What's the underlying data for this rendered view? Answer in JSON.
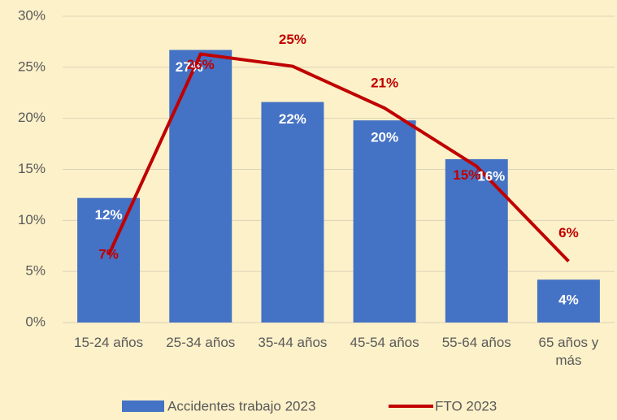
{
  "chart_data": {
    "type": "bar_line",
    "categories": [
      "15-24 años",
      "25-34 años",
      "35-44 años",
      "45-54 años",
      "55-64 años",
      "65 años y más"
    ],
    "series": [
      {
        "name": "Accidentes trabajo 2023",
        "type": "bar",
        "color": "#4472c4",
        "values": [
          12.2,
          26.7,
          21.6,
          19.8,
          16.0,
          4.2
        ],
        "value_labels": [
          "12%",
          "27%",
          "22%",
          "20%",
          "16%",
          "4%"
        ]
      },
      {
        "name": "FTO 2023",
        "type": "line",
        "color": "#c00000",
        "values": [
          6.6,
          26.3,
          25.1,
          21.0,
          15.3,
          6.0
        ],
        "value_labels": [
          "7%",
          "26%",
          "25%",
          "21%",
          "15%",
          "6%"
        ]
      }
    ],
    "ylim": [
      0,
      30
    ],
    "yticks": [
      {
        "value": 0,
        "label": "0%"
      },
      {
        "value": 5,
        "label": "5%"
      },
      {
        "value": 10,
        "label": "10%"
      },
      {
        "value": 15,
        "label": "15%"
      },
      {
        "value": 20,
        "label": "20%"
      },
      {
        "value": 25,
        "label": "25%"
      },
      {
        "value": 30,
        "label": "30%"
      }
    ],
    "grid": true,
    "legend": "bottom"
  }
}
